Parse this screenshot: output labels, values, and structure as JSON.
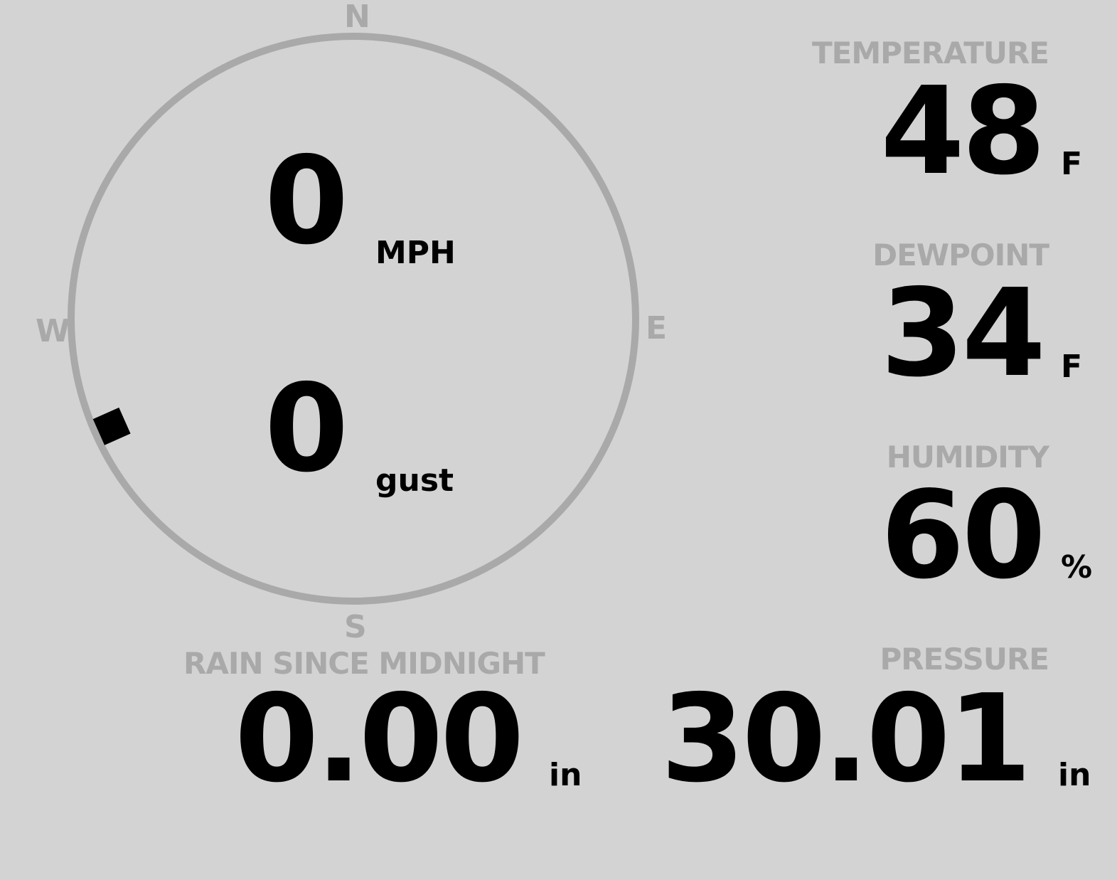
{
  "colors": {
    "background": "#d3d3d3",
    "label": "#a9a9a9",
    "value": "#000000"
  },
  "wind": {
    "speed": "0",
    "speed_unit": "MPH",
    "gust": "0",
    "gust_unit": "gust",
    "direction_degrees": 246,
    "cardinals": {
      "n": "N",
      "e": "E",
      "s": "S",
      "w": "W"
    }
  },
  "temperature": {
    "label": "TEMPERATURE",
    "value": "48",
    "unit": "F"
  },
  "dewpoint": {
    "label": "DEWPOINT",
    "value": "34",
    "unit": "F"
  },
  "humidity": {
    "label": "HUMIDITY",
    "value": "60",
    "unit": "%"
  },
  "rain": {
    "label": "RAIN SINCE MIDNIGHT",
    "value": "0.00",
    "unit": "in"
  },
  "pressure": {
    "label": "PRESSURE",
    "value": "30.01",
    "unit": "in"
  }
}
